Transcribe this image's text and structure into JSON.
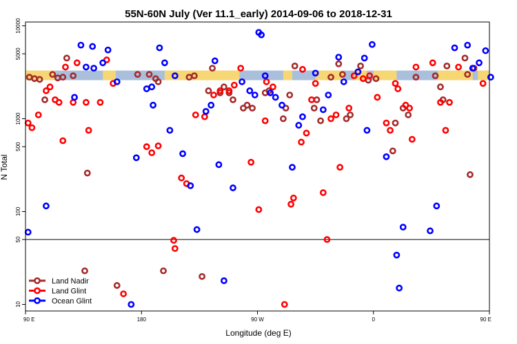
{
  "chart_data": {
    "type": "scatter",
    "title": "55N-60N July (Ver 11.1_early)   2014-09-06 to 2018-12-31",
    "xlabel": "Longitude (deg E)",
    "ylabel": "N Total",
    "x_axis": {
      "scale": "linear",
      "range": [
        90,
        450
      ]
    },
    "y_axis": {
      "scale": "log",
      "range": [
        8.5,
        11000
      ]
    },
    "x_ticks": [
      {
        "value": 90,
        "label": "90 E"
      },
      {
        "value": 180,
        "label": "180"
      },
      {
        "value": 270,
        "label": "90 W"
      },
      {
        "value": 360,
        "label": "0"
      },
      {
        "value": 450,
        "label": "90 E"
      }
    ],
    "y_ticks": [
      {
        "value": 10,
        "label": "10"
      },
      {
        "value": 50,
        "label": "50"
      },
      {
        "value": 100,
        "label": "100"
      },
      {
        "value": 500,
        "label": "500"
      },
      {
        "value": 1000,
        "label": "1000"
      },
      {
        "value": 5000,
        "label": "5000"
      },
      {
        "value": 10000,
        "label": "10000"
      }
    ],
    "reference_line": {
      "y": 50,
      "color": "#000000"
    },
    "land_mask_band": {
      "y_range": [
        2600,
        3300
      ],
      "land_color": "#f7d774",
      "ocean_color": "#aabfdc",
      "land_segments": [
        [
          90,
          113
        ],
        [
          150,
          160
        ],
        [
          198,
          256
        ],
        [
          290,
          297
        ],
        [
          315,
          337
        ],
        [
          345,
          355
        ],
        [
          360,
          378
        ],
        [
          410,
          437
        ],
        [
          441,
          450
        ]
      ]
    },
    "legend": {
      "position": "bottom-left"
    },
    "series": [
      {
        "name": "Land Nadir",
        "color": "#a52a2a",
        "points": [
          [
            93,
            2800
          ],
          [
            97,
            2700
          ],
          [
            101,
            2650
          ],
          [
            105,
            1600
          ],
          [
            111,
            3000
          ],
          [
            115,
            2750
          ],
          [
            119,
            2800
          ],
          [
            122,
            4500
          ],
          [
            127,
            2900
          ],
          [
            136,
            23
          ],
          [
            138,
            260
          ],
          [
            161,
            16
          ],
          [
            177,
            3000
          ],
          [
            186,
            3000
          ],
          [
            191,
            2700
          ],
          [
            193,
            2500
          ],
          [
            197,
            23
          ],
          [
            217,
            2800
          ],
          [
            221,
            2900
          ],
          [
            227,
            20
          ],
          [
            232,
            2000
          ],
          [
            235,
            3500
          ],
          [
            241,
            1900
          ],
          [
            244,
            2200
          ],
          [
            248,
            1900
          ],
          [
            251,
            1600
          ],
          [
            259,
            1300
          ],
          [
            262,
            1400
          ],
          [
            266,
            1300
          ],
          [
            276,
            1900
          ],
          [
            279,
            2000
          ],
          [
            290,
            1000
          ],
          [
            292,
            1300
          ],
          [
            295,
            1800
          ],
          [
            299,
            3700
          ],
          [
            314,
            1300
          ],
          [
            316,
            1600
          ],
          [
            319,
            950
          ],
          [
            327,
            2800
          ],
          [
            333,
            3900
          ],
          [
            336,
            3000
          ],
          [
            339,
            1000
          ],
          [
            342,
            1100
          ],
          [
            350,
            3700
          ],
          [
            356,
            2600
          ],
          [
            362,
            2700
          ],
          [
            375,
            450
          ],
          [
            377,
            900
          ],
          [
            383,
            1300
          ],
          [
            387,
            1100
          ],
          [
            393,
            2800
          ],
          [
            408,
            2900
          ],
          [
            412,
            2200
          ],
          [
            414,
            1600
          ],
          [
            417,
            3700
          ],
          [
            431,
            4500
          ],
          [
            433,
            3000
          ],
          [
            435,
            250
          ],
          [
            438,
            3500
          ],
          [
            452,
            13
          ],
          [
            454,
            2600
          ]
        ]
      },
      {
        "name": "Land Glint",
        "color": "#ff0000",
        "points": [
          [
            92,
            900
          ],
          [
            95,
            800
          ],
          [
            100,
            1100
          ],
          [
            106,
            2000
          ],
          [
            109,
            2200
          ],
          [
            113,
            1600
          ],
          [
            116,
            1500
          ],
          [
            119,
            580
          ],
          [
            121,
            3600
          ],
          [
            127,
            1500
          ],
          [
            130,
            4000
          ],
          [
            137,
            1500
          ],
          [
            139,
            750
          ],
          [
            148,
            1500
          ],
          [
            153,
            4300
          ],
          [
            158,
            2400
          ],
          [
            166,
            13
          ],
          [
            184,
            500
          ],
          [
            188,
            430
          ],
          [
            193,
            510
          ],
          [
            205,
            49
          ],
          [
            206,
            40
          ],
          [
            211,
            230
          ],
          [
            215,
            200
          ],
          [
            222,
            1100
          ],
          [
            229,
            1050
          ],
          [
            236,
            1800
          ],
          [
            241,
            2000
          ],
          [
            248,
            2000
          ],
          [
            252,
            2300
          ],
          [
            257,
            3500
          ],
          [
            265,
            340
          ],
          [
            271,
            105
          ],
          [
            276,
            950
          ],
          [
            277,
            2500
          ],
          [
            282,
            2200
          ],
          [
            291,
            10
          ],
          [
            296,
            120
          ],
          [
            298,
            140
          ],
          [
            304,
            560
          ],
          [
            305,
            3400
          ],
          [
            308,
            700
          ],
          [
            312,
            1600
          ],
          [
            315,
            2400
          ],
          [
            321,
            160
          ],
          [
            324,
            50
          ],
          [
            327,
            1000
          ],
          [
            331,
            1100
          ],
          [
            334,
            300
          ],
          [
            341,
            1300
          ],
          [
            345,
            2900
          ],
          [
            352,
            2700
          ],
          [
            357,
            2900
          ],
          [
            363,
            1700
          ],
          [
            370,
            900
          ],
          [
            373,
            750
          ],
          [
            377,
            2400
          ],
          [
            379,
            2100
          ],
          [
            385,
            1400
          ],
          [
            388,
            1300
          ],
          [
            390,
            600
          ],
          [
            393,
            3600
          ],
          [
            406,
            4000
          ],
          [
            412,
            1500
          ],
          [
            416,
            750
          ],
          [
            419,
            1500
          ],
          [
            426,
            3600
          ],
          [
            445,
            2400
          ]
        ]
      },
      {
        "name": "Ocean Glint",
        "color": "#0000ff",
        "points": [
          [
            92,
            60
          ],
          [
            106,
            115
          ],
          [
            128,
            1700
          ],
          [
            133,
            6200
          ],
          [
            137,
            3600
          ],
          [
            142,
            6000
          ],
          [
            143,
            3500
          ],
          [
            150,
            4000
          ],
          [
            154,
            5500
          ],
          [
            161,
            2500
          ],
          [
            172,
            10
          ],
          [
            176,
            380
          ],
          [
            184,
            2100
          ],
          [
            188,
            2200
          ],
          [
            189,
            1400
          ],
          [
            194,
            5800
          ],
          [
            198,
            4000
          ],
          [
            202,
            750
          ],
          [
            206,
            2900
          ],
          [
            212,
            420
          ],
          [
            218,
            190
          ],
          [
            223,
            64
          ],
          [
            230,
            1200
          ],
          [
            234,
            1400
          ],
          [
            237,
            4200
          ],
          [
            240,
            320
          ],
          [
            244,
            18
          ],
          [
            251,
            180
          ],
          [
            258,
            2500
          ],
          [
            264,
            2000
          ],
          [
            268,
            1800
          ],
          [
            271,
            8500
          ],
          [
            273,
            8000
          ],
          [
            276,
            2900
          ],
          [
            280,
            1900
          ],
          [
            284,
            1700
          ],
          [
            289,
            1400
          ],
          [
            297,
            300
          ],
          [
            302,
            850
          ],
          [
            305,
            1050
          ],
          [
            315,
            3100
          ],
          [
            321,
            1250
          ],
          [
            325,
            1800
          ],
          [
            333,
            4600
          ],
          [
            337,
            2500
          ],
          [
            348,
            3200
          ],
          [
            353,
            4500
          ],
          [
            355,
            750
          ],
          [
            359,
            6300
          ],
          [
            370,
            390
          ],
          [
            378,
            34
          ],
          [
            380,
            15
          ],
          [
            383,
            68
          ],
          [
            404,
            62
          ],
          [
            409,
            115
          ],
          [
            423,
            5800
          ],
          [
            433,
            6200
          ],
          [
            437,
            3500
          ],
          [
            442,
            4000
          ],
          [
            447,
            5400
          ],
          [
            451,
            2800
          ],
          [
            457,
            2500
          ]
        ]
      }
    ]
  }
}
